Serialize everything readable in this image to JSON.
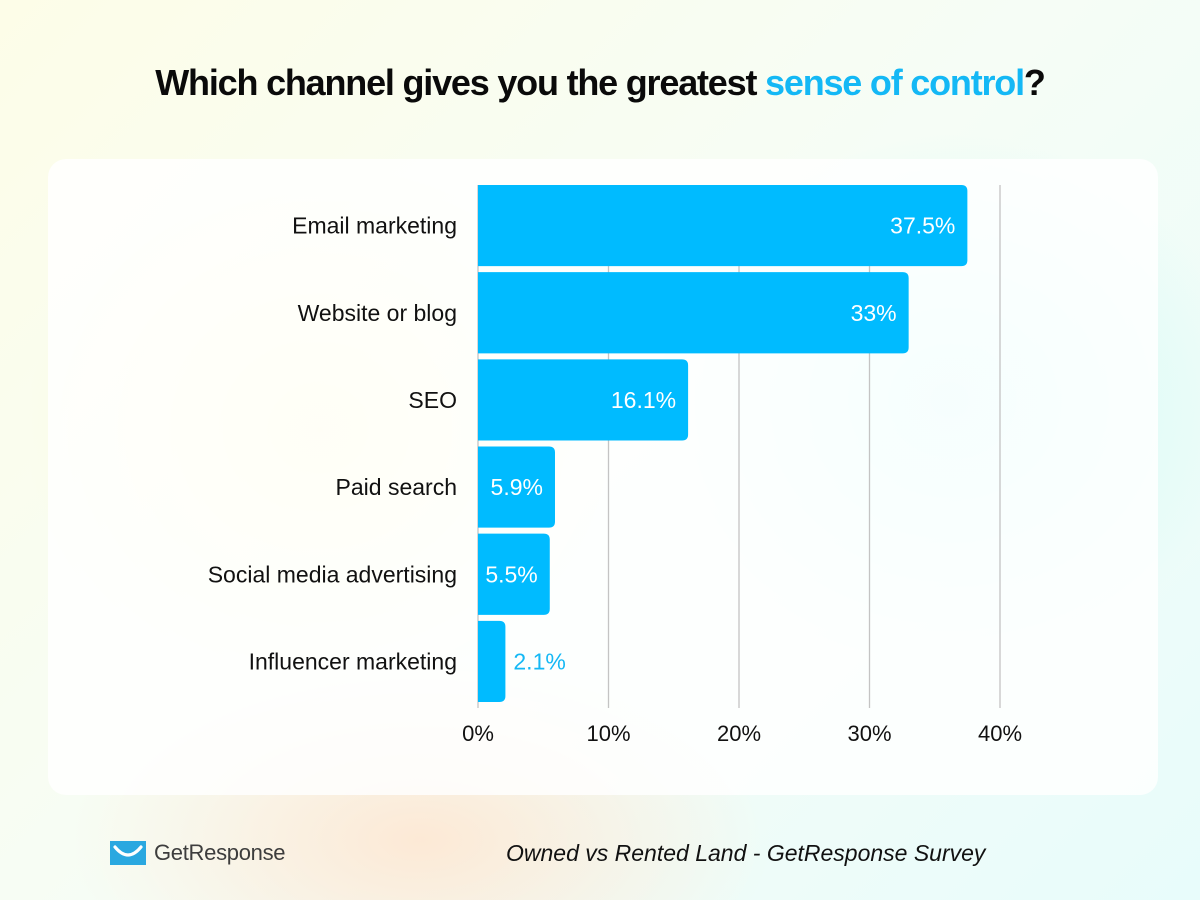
{
  "header": {
    "title_main": "Which channel gives you the greatest ",
    "title_accent": "sense of control",
    "title_end": "?"
  },
  "colors": {
    "bar": "#00bbff",
    "accent_text": "#14b8f5",
    "label_text": "#111111",
    "gridline": "#c4c4c4",
    "bar_value_inside": "#ffffff"
  },
  "chart_data": {
    "type": "bar",
    "orientation": "horizontal",
    "title": "Which channel gives you the greatest sense of control?",
    "categories": [
      "Email marketing",
      "Website or blog",
      "SEO",
      "Paid search",
      "Social media advertising",
      "Influencer marketing"
    ],
    "values": [
      37.5,
      33,
      16.1,
      5.9,
      5.5,
      2.1
    ],
    "value_labels": [
      "37.5%",
      "33%",
      "16.1%",
      "5.9%",
      "5.5%",
      "2.1%"
    ],
    "xlim": [
      0,
      40
    ],
    "xticks": [
      0,
      10,
      20,
      30,
      40
    ],
    "xtick_labels": [
      "0%",
      "10%",
      "20%",
      "30%",
      "40%"
    ],
    "xlabel": "",
    "ylabel": "",
    "grid": true
  },
  "footer": {
    "brand": "GetResponse",
    "source": "Owned vs Rented Land - GetResponse Survey"
  }
}
